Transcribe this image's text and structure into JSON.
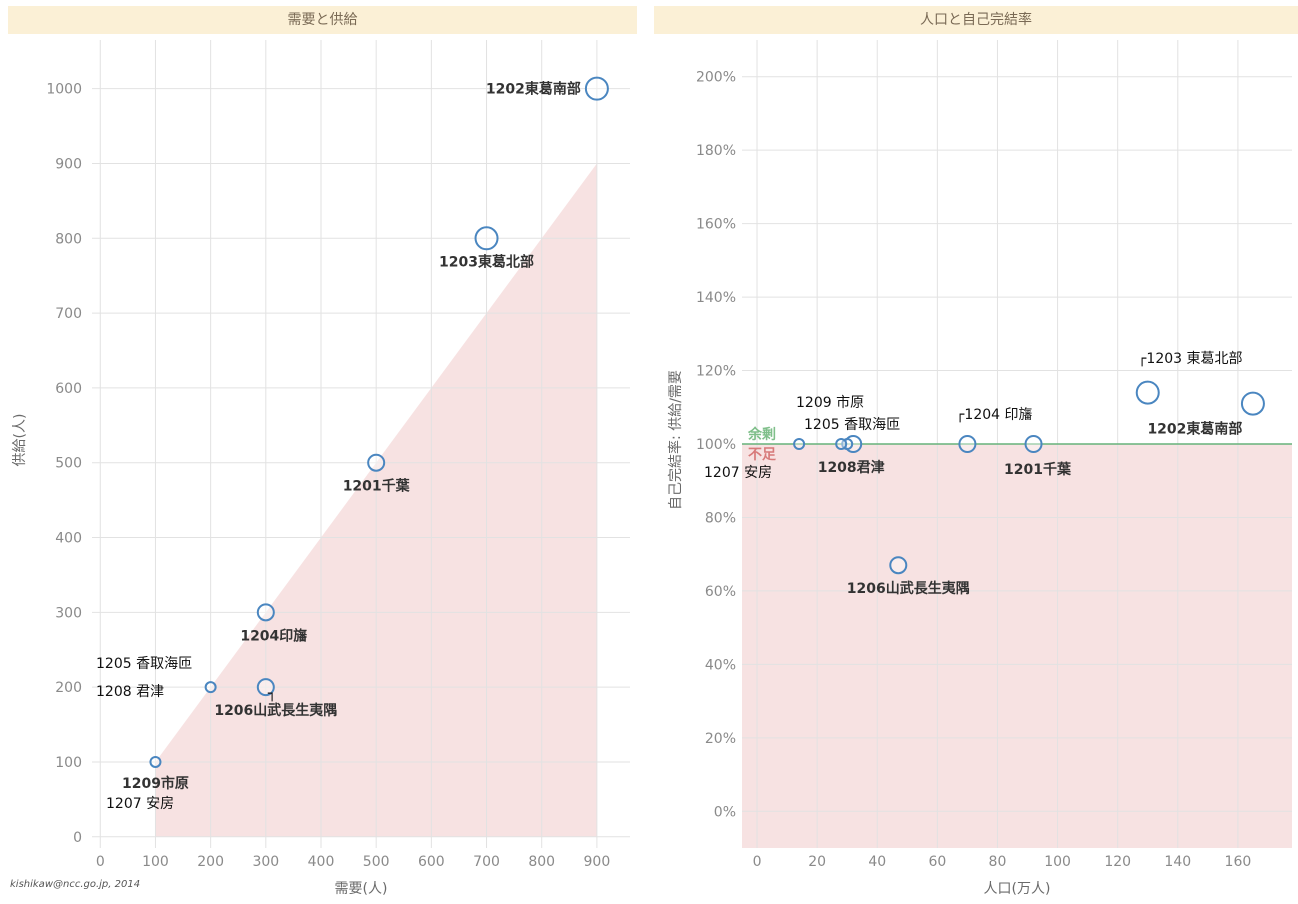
{
  "colors": {
    "header_bg": "#fbf0d6",
    "deficit_fill": "#f6dddd",
    "marker": "#4a86c0",
    "surplus_line": "#66b27a",
    "surplus_text": "#7fbf8a",
    "deficit_text": "#d77a7a"
  },
  "credit": "kishikaw@ncc.go.jp, 2014",
  "chart_data": [
    {
      "type": "scatter",
      "title": "需要と供給",
      "xlabel": "需要(人)",
      "ylabel": "供給(人)",
      "xlim": [
        -15,
        960
      ],
      "ylim": [
        -15,
        1065
      ],
      "xticks": [
        0,
        100,
        200,
        300,
        400,
        500,
        600,
        700,
        800,
        900
      ],
      "yticks": [
        0,
        100,
        200,
        300,
        400,
        500,
        600,
        700,
        800,
        900,
        1000
      ],
      "deficit_region": "below the y = x diagonal",
      "points": [
        {
          "x": 900,
          "y": 1000,
          "label": "1202東葛南部",
          "size": "large"
        },
        {
          "x": 700,
          "y": 800,
          "label": "1203東葛北部",
          "size": "large"
        },
        {
          "x": 500,
          "y": 500,
          "label": "1201千葉",
          "size": "medium"
        },
        {
          "x": 300,
          "y": 300,
          "label": "1204印旛",
          "size": "medium"
        },
        {
          "x": 300,
          "y": 200,
          "label": "1206山武長生夷隅",
          "size": "medium"
        },
        {
          "x": 200,
          "y": 200,
          "label": "",
          "size": "small"
        },
        {
          "x": 100,
          "y": 100,
          "label": "1209市原",
          "size": "small"
        }
      ],
      "annotations": [
        "1205 香取海匝",
        "1208 君津",
        "1207 安房",
        "┐"
      ]
    },
    {
      "type": "scatter",
      "title": "人口と自己完結率",
      "xlabel": "人口(万人)",
      "ylabel": "自己完結率: 供給/需要",
      "xlim": [
        -5,
        178
      ],
      "ylim": [
        -10,
        210
      ],
      "xticks": [
        0,
        20,
        40,
        60,
        80,
        100,
        120,
        140,
        160
      ],
      "yticks": [
        "0%",
        "20%",
        "40%",
        "60%",
        "80%",
        "100%",
        "120%",
        "140%",
        "160%",
        "180%",
        "200%"
      ],
      "yvalues": [
        0,
        20,
        40,
        60,
        80,
        100,
        120,
        140,
        160,
        180,
        200
      ],
      "reference_line": 100,
      "surplus_label": "余剰",
      "deficit_label": "不足",
      "points": [
        {
          "x": 130,
          "y": 114,
          "label": "",
          "size": "large"
        },
        {
          "x": 165,
          "y": 111,
          "label": "1202東葛南部",
          "size": "large"
        },
        {
          "x": 92,
          "y": 100,
          "label": "1201千葉",
          "size": "medium"
        },
        {
          "x": 70,
          "y": 100,
          "label": "",
          "size": "medium"
        },
        {
          "x": 32,
          "y": 100,
          "label": "",
          "size": "medium"
        },
        {
          "x": 30,
          "y": 100,
          "label": "1208君津",
          "size": "small"
        },
        {
          "x": 28,
          "y": 100,
          "label": "",
          "size": "small"
        },
        {
          "x": 14,
          "y": 100,
          "label": "",
          "size": "small"
        },
        {
          "x": 47,
          "y": 67,
          "label": "1206山武長生夷隅",
          "size": "medium"
        }
      ],
      "annotations": [
        "┌1203 東葛北部",
        "┌1204 印旛",
        "1209 市原",
        "1205 香取海匝",
        "1207 安房"
      ]
    }
  ]
}
